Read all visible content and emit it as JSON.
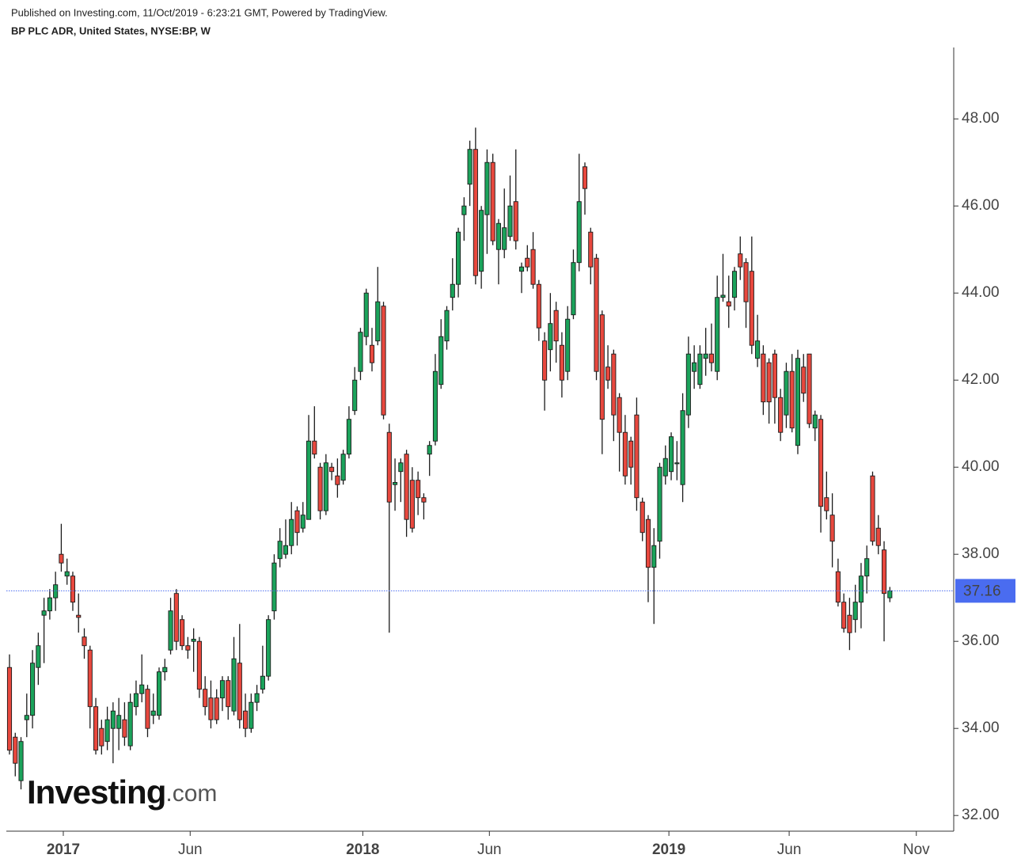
{
  "header": {
    "published": "Published on Investing.com, 11/Oct/2019 - 6:23:21 GMT, Powered by TradingView.",
    "symbol": "BP PLC ADR, United States, NYSE:BP, W"
  },
  "logo": {
    "name": "Investing",
    "suffix": ".com"
  },
  "chart_data": {
    "type": "candlestick",
    "open": [
      35.4,
      33.8,
      32.8,
      34.2,
      34.3,
      35.4,
      36.6,
      36.7,
      37.0,
      38.0,
      37.5,
      37.5,
      36.6,
      36.1,
      35.8,
      34.5,
      34.0,
      33.7,
      34.0,
      34.0,
      34.2,
      33.6,
      34.5,
      34.8,
      34.9,
      34.3,
      34.3,
      35.3,
      35.8,
      37.1,
      36.5,
      35.9,
      36.0,
      36.0,
      34.9,
      34.7,
      34.7,
      34.7,
      35.1,
      34.4,
      35.5,
      34.4,
      34.0,
      34.6,
      34.9,
      35.2,
      36.7,
      37.9,
      38.0,
      38.2,
      39.0,
      38.6,
      38.8,
      40.6,
      40.0,
      39.0,
      40.0,
      39.8,
      39.7,
      40.3,
      41.3,
      42.2,
      43.0,
      42.8,
      42.9,
      43.7,
      40.8,
      39.6,
      39.9,
      40.3,
      39.7,
      39.7,
      39.3,
      40.3,
      40.6,
      41.9,
      42.9,
      43.9,
      44.2,
      45.8,
      46.5,
      47.3,
      44.5,
      45.8,
      47.0,
      45.0,
      45.0,
      45.3,
      46.1,
      44.5,
      44.8,
      45.0,
      44.2,
      42.9,
      42.7,
      43.6,
      42.8,
      42.2,
      43.5,
      44.7,
      46.9,
      45.4,
      44.8,
      43.5,
      42.3,
      42.6,
      41.6,
      40.8,
      40.6,
      41.2,
      39.2,
      38.8,
      37.7,
      38.3,
      39.8,
      39.9,
      40.1,
      39.6,
      41.2,
      42.2,
      41.9,
      42.5,
      42.6,
      42.2,
      43.9,
      43.8,
      43.9,
      44.9,
      44.7,
      44.5,
      42.5,
      42.6,
      42.4,
      42.6,
      41.6,
      41.2,
      42.2,
      40.5,
      42.3,
      42.6,
      40.9,
      41.1,
      39.3,
      38.9,
      37.6,
      36.9,
      36.6,
      36.5,
      36.9,
      37.5,
      39.8,
      38.6,
      38.1,
      37.0
    ],
    "high": [
      35.7,
      33.9,
      33.8,
      34.8,
      35.8,
      36.2,
      37.0,
      37.2,
      37.6,
      38.7,
      37.9,
      37.6,
      37.1,
      36.3,
      35.9,
      34.7,
      34.2,
      34.5,
      34.6,
      34.7,
      34.6,
      34.8,
      35.1,
      35.7,
      35.0,
      34.8,
      35.4,
      35.6,
      37.0,
      37.2,
      36.6,
      36.1,
      36.3,
      36.1,
      35.2,
      35.1,
      34.9,
      35.2,
      35.2,
      36.1,
      36.4,
      34.8,
      34.8,
      35.0,
      35.9,
      36.6,
      38.0,
      38.6,
      38.8,
      39.2,
      39.1,
      39.2,
      41.2,
      41.4,
      40.1,
      40.3,
      40.1,
      40.2,
      40.4,
      41.4,
      42.3,
      43.2,
      44.1,
      43.2,
      44.6,
      43.8,
      41.0,
      40.2,
      40.2,
      40.4,
      40.0,
      39.9,
      39.4,
      40.6,
      42.6,
      43.4,
      43.7,
      44.8,
      45.5,
      46.2,
      47.5,
      47.8,
      46.0,
      47.3,
      47.2,
      45.7,
      46.4,
      46.7,
      47.3,
      44.7,
      45.1,
      45.4,
      44.3,
      43.1,
      44.0,
      43.8,
      43.1,
      43.7,
      45.0,
      47.2,
      47.0,
      45.5,
      44.9,
      43.6,
      42.8,
      42.7,
      41.7,
      41.2,
      40.7,
      41.6,
      39.3,
      38.9,
      38.6,
      40.1,
      40.5,
      40.8,
      40.6,
      41.7,
      43.0,
      42.8,
      42.8,
      43.2,
      43.3,
      44.4,
      44.9,
      44.4,
      44.6,
      45.3,
      44.8,
      45.3,
      43.5,
      42.8,
      42.5,
      42.7,
      41.8,
      42.4,
      42.6,
      42.7,
      42.6,
      42.6,
      41.3,
      41.2,
      39.9,
      39.4,
      37.9,
      37.1,
      37.0,
      37.3,
      37.8,
      38.2,
      39.9,
      38.9,
      38.3,
      37.25
    ],
    "low": [
      33.4,
      32.9,
      32.6,
      33.8,
      34.0,
      35.0,
      35.5,
      36.5,
      36.7,
      37.6,
      37.3,
      36.7,
      36.2,
      35.6,
      34.0,
      33.4,
      33.4,
      33.5,
      33.2,
      33.5,
      33.6,
      33.5,
      34.3,
      34.6,
      33.8,
      34.1,
      34.2,
      35.1,
      35.7,
      35.8,
      35.8,
      35.6,
      35.3,
      34.7,
      34.3,
      34.0,
      34.1,
      34.4,
      34.2,
      34.3,
      34.0,
      33.8,
      33.9,
      34.4,
      34.8,
      35.1,
      36.5,
      37.7,
      37.9,
      38.0,
      38.2,
      38.5,
      38.8,
      40.2,
      38.8,
      38.9,
      39.7,
      39.3,
      39.6,
      40.2,
      41.2,
      42.0,
      42.8,
      42.2,
      42.8,
      41.1,
      36.2,
      39.0,
      39.2,
      38.4,
      38.5,
      38.9,
      38.8,
      39.8,
      40.5,
      41.8,
      42.7,
      43.6,
      43.9,
      45.2,
      46.0,
      44.2,
      44.1,
      44.9,
      45.1,
      44.2,
      44.8,
      45.2,
      45.0,
      44.0,
      44.5,
      44.1,
      42.9,
      41.3,
      42.2,
      42.4,
      41.6,
      42.0,
      43.4,
      44.5,
      45.8,
      44.2,
      42.0,
      40.3,
      41.8,
      40.6,
      39.9,
      39.6,
      39.6,
      39.0,
      38.3,
      36.9,
      36.4,
      37.9,
      39.6,
      39.7,
      39.7,
      39.2,
      40.9,
      41.8,
      41.8,
      42.1,
      42.2,
      42.0,
      43.8,
      43.2,
      43.6,
      44.3,
      43.2,
      42.6,
      42.3,
      41.2,
      41.0,
      41.0,
      40.6,
      40.9,
      40.8,
      40.3,
      41.5,
      40.9,
      40.6,
      38.5,
      38.8,
      37.7,
      36.8,
      36.2,
      35.8,
      36.2,
      36.3,
      37.1,
      38.2,
      38.0,
      36.0,
      36.9
    ],
    "close": [
      33.5,
      33.2,
      33.7,
      34.3,
      35.5,
      35.9,
      36.7,
      37.0,
      37.3,
      37.8,
      37.6,
      36.9,
      36.55,
      35.9,
      34.5,
      33.5,
      33.6,
      34.2,
      34.4,
      34.3,
      33.8,
      34.6,
      34.8,
      35.0,
      34.0,
      34.4,
      35.3,
      35.4,
      36.7,
      36.0,
      35.9,
      35.8,
      36.05,
      34.9,
      34.5,
      34.2,
      34.2,
      35.1,
      34.5,
      35.6,
      34.2,
      34.0,
      34.6,
      34.8,
      35.2,
      36.5,
      37.8,
      38.3,
      38.2,
      38.8,
      38.5,
      38.9,
      40.6,
      40.3,
      39.0,
      40.1,
      39.9,
      39.6,
      40.3,
      41.1,
      42.0,
      43.1,
      44.0,
      42.4,
      43.8,
      41.2,
      39.2,
      39.65,
      40.1,
      38.8,
      38.6,
      39.3,
      39.2,
      40.5,
      42.2,
      43.0,
      43.6,
      44.2,
      45.4,
      46.0,
      47.3,
      44.4,
      45.9,
      47.0,
      45.2,
      45.6,
      45.5,
      46.0,
      45.2,
      44.6,
      44.6,
      44.2,
      43.2,
      42.0,
      43.3,
      42.9,
      42.0,
      43.4,
      44.7,
      46.1,
      46.4,
      44.6,
      42.2,
      41.1,
      42.0,
      41.2,
      40.8,
      39.8,
      40.0,
      39.3,
      38.5,
      37.7,
      38.2,
      40.0,
      40.2,
      40.7,
      40.1,
      41.3,
      42.6,
      42.4,
      42.6,
      42.6,
      42.4,
      43.9,
      43.95,
      43.7,
      44.5,
      44.6,
      43.8,
      42.8,
      42.9,
      41.5,
      41.5,
      41.6,
      40.8,
      42.2,
      40.9,
      42.5,
      41.7,
      41.0,
      41.2,
      39.1,
      39.0,
      38.3,
      36.9,
      36.3,
      36.2,
      36.9,
      37.5,
      37.9,
      38.3,
      38.2,
      37.1,
      37.16
    ],
    "up_color": "#1ba35b",
    "down_color": "#e8483e",
    "outline_color": "#1a1a1a",
    "last_price": 37.16,
    "last_price_color": "#4a6cf0",
    "xlim": [
      -0.55,
      164.1
    ],
    "xticks": [
      {
        "value": 9.35,
        "label": "2017"
      },
      {
        "value": 31.4,
        "label": "Jun"
      },
      {
        "value": 61.4,
        "label": "2018"
      },
      {
        "value": 83.4,
        "label": "Jun"
      },
      {
        "value": 114.6,
        "label": "2019"
      },
      {
        "value": 135.5,
        "label": "Jun"
      },
      {
        "value": 157.6,
        "label": "Nov"
      }
    ],
    "ylim": [
      31.64,
      49.64
    ],
    "yticks": [
      {
        "value": 32,
        "label": "32.00"
      },
      {
        "value": 34,
        "label": "34.00"
      },
      {
        "value": 36,
        "label": "36.00"
      },
      {
        "value": 38,
        "label": "38.00"
      },
      {
        "value": 40,
        "label": "40.00"
      },
      {
        "value": 42,
        "label": "42.00"
      },
      {
        "value": 44,
        "label": "44.00"
      },
      {
        "value": 46,
        "label": "46.00"
      },
      {
        "value": 48,
        "label": "48.00"
      }
    ]
  }
}
